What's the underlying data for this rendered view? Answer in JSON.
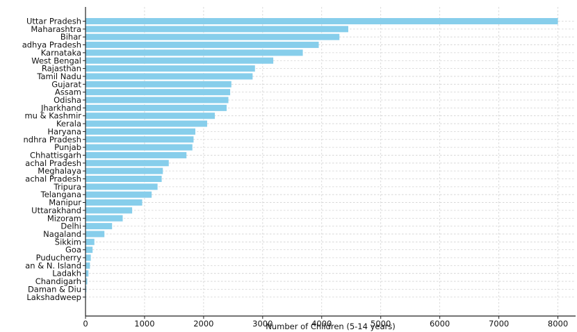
{
  "chart_data": {
    "type": "bar",
    "orientation": "horizontal",
    "title": "",
    "xlabel": "Number of Children (5-14 years)",
    "ylabel": "",
    "xlim": [
      0,
      8300
    ],
    "xticks": [
      0,
      1000,
      2000,
      3000,
      4000,
      5000,
      6000,
      7000,
      8000
    ],
    "grid": true,
    "bar_color": "#87ceeb",
    "categories": [
      "Uttar Pradesh",
      "Maharashtra",
      "Bihar",
      "adhya Pradesh",
      "Karnataka",
      "West Bengal",
      "Rajasthan",
      "Tamil Nadu",
      "Gujarat",
      "Assam",
      "Odisha",
      "Jharkhand",
      "mu & Kashmir",
      "Kerala",
      "Haryana",
      "ndhra Pradesh",
      "Punjab",
      "Chhattisgarh",
      "achal Pradesh",
      "Meghalaya",
      "achal Pradesh",
      "Tripura",
      "Telangana",
      "Manipur",
      "Uttarakhand",
      "Mizoram",
      "Delhi",
      "Nagaland",
      "Sikkim",
      "Goa",
      "Puducherry",
      "an & N. Island",
      "Ladakh",
      "Chandigarh",
      "Daman & Diu",
      "Lakshadweep"
    ],
    "values": [
      8000,
      4450,
      4300,
      3950,
      3680,
      3180,
      2870,
      2830,
      2470,
      2450,
      2420,
      2390,
      2190,
      2060,
      1860,
      1830,
      1810,
      1710,
      1410,
      1310,
      1290,
      1220,
      1120,
      960,
      790,
      630,
      450,
      320,
      150,
      120,
      90,
      75,
      50,
      30,
      15,
      8
    ]
  }
}
